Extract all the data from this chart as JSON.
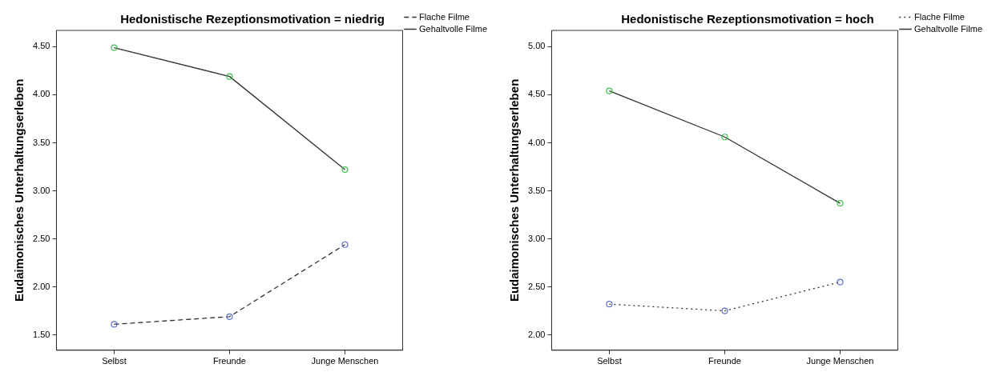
{
  "chart_data": [
    {
      "type": "line",
      "title": "Hedonistische Rezeptionsmotivation = niedrig",
      "ylabel": "Eudaimonisches Unterhaltungserleben",
      "categories": [
        "Selbst",
        "Freunde",
        "Junge Menschen"
      ],
      "ylim": [
        1.34,
        4.67
      ],
      "yticks": [
        {
          "value": 1.5,
          "label": "1.50"
        },
        {
          "value": 2,
          "label": "2.00"
        },
        {
          "value": 2.5,
          "label": "2.50"
        },
        {
          "value": 3,
          "label": "3.00"
        },
        {
          "value": 3.5,
          "label": "3.50"
        },
        {
          "value": 4,
          "label": "4.00"
        },
        {
          "value": 4.5,
          "label": "4.50"
        }
      ],
      "grid": false,
      "legend": "top right",
      "marker": "circle",
      "series": [
        {
          "name": "Flache Filme",
          "color": "#333333",
          "colors": [
            "#5b6fc6",
            "#5b6fc6",
            "#5b6fc6"
          ],
          "line_style": "dashed",
          "values": [
            1.61,
            1.69,
            2.44
          ]
        },
        {
          "name": "Gehaltvolle Filme",
          "color": "#333333",
          "colors": [
            "#3cbf4c",
            "#3cbf4c",
            "#3cbf4c"
          ],
          "line_style": "solid",
          "values": [
            4.49,
            4.19,
            3.22
          ]
        }
      ]
    },
    {
      "type": "line",
      "title": "Hedonistische Rezeptionsmotivation = hoch",
      "ylabel": "Eudaimonisches Unterhaltungserleben",
      "categories": [
        "Selbst",
        "Freunde",
        "Junge Menschen"
      ],
      "ylim": [
        1.84,
        5.17
      ],
      "yticks": [
        {
          "value": 2,
          "label": "2.00"
        },
        {
          "value": 2.5,
          "label": "2.50"
        },
        {
          "value": 3,
          "label": "3.00"
        },
        {
          "value": 3.5,
          "label": "3.50"
        },
        {
          "value": 4,
          "label": "4.00"
        },
        {
          "value": 4.5,
          "label": "4.50"
        },
        {
          "value": 5,
          "label": "5.00"
        }
      ],
      "grid": false,
      "legend": "top right",
      "marker": "circle",
      "series": [
        {
          "name": "Flache Filme",
          "color": "#333333",
          "colors": [
            "#5b6fc6",
            "#5b6fc6",
            "#5b6fc6"
          ],
          "line_style": "dotted",
          "values": [
            2.32,
            2.25,
            2.55
          ]
        },
        {
          "name": "Gehaltvolle Filme",
          "color": "#333333",
          "colors": [
            "#3cbf4c",
            "#3cbf4c",
            "#3cbf4c"
          ],
          "line_style": "solid",
          "values": [
            4.54,
            4.06,
            3.37
          ]
        }
      ]
    }
  ]
}
